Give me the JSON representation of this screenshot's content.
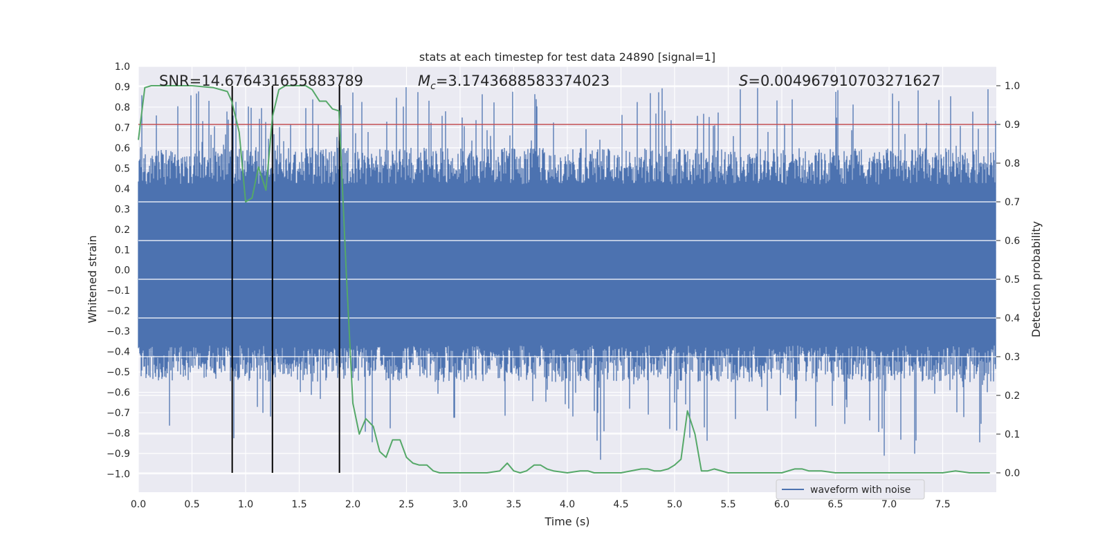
{
  "chart_data": {
    "type": "line",
    "title": "stats at each timestep for test data 24890 [signal=1]",
    "xlabel": "Time (s)",
    "ylabel_left": "Whitened strain",
    "ylabel_right": "Detection probability",
    "xlim": [
      0.0,
      8.0
    ],
    "ylim_left": [
      -1.09,
      1.0
    ],
    "ylim_right": [
      -0.05,
      1.05
    ],
    "x_ticks": [
      "0.0",
      "0.5",
      "1.0",
      "1.5",
      "2.0",
      "2.5",
      "3.0",
      "3.5",
      "4.0",
      "4.5",
      "5.0",
      "5.5",
      "6.0",
      "6.5",
      "7.0",
      "7.5"
    ],
    "y_ticks_left": [
      "1.0",
      "0.9",
      "0.8",
      "0.7",
      "0.6",
      "0.5",
      "0.4",
      "0.3",
      "0.2",
      "0.1",
      "0.0",
      "−0.1",
      "−0.2",
      "−0.3",
      "−0.4",
      "−0.5",
      "−0.6",
      "−0.7",
      "−0.8",
      "−0.9",
      "−1.0"
    ],
    "y_ticks_right": [
      "1.0",
      "0.9",
      "0.8",
      "0.7",
      "0.6",
      "0.5",
      "0.4",
      "0.3",
      "0.2",
      "0.1",
      "0.0"
    ],
    "annotations": {
      "snr": "SNR=14.676431655883789",
      "mc_symbol": "M",
      "mc_sub": "c",
      "mc_value": "=3.1743688583374023",
      "s_symbol": "S",
      "s_value": "=0.004967910703271627"
    },
    "threshold": {
      "value": 0.9,
      "axis": "right",
      "color": "#c44e52"
    },
    "vlines": [
      0.875,
      1.25,
      1.875
    ],
    "waveform": {
      "name": "waveform with noise",
      "color": "#4c72b0",
      "typical_band": [
        -0.45,
        0.5
      ],
      "spike_range": [
        -1.0,
        0.9
      ]
    },
    "series": [
      {
        "name": "",
        "axis": "right",
        "color": "#55a868",
        "x": [
          0.0,
          0.06,
          0.12,
          0.25,
          0.5,
          0.7,
          0.83,
          0.87,
          0.94,
          1.0,
          1.06,
          1.12,
          1.19,
          1.25,
          1.31,
          1.37,
          1.44,
          1.5,
          1.56,
          1.62,
          1.69,
          1.75,
          1.81,
          1.87,
          1.94,
          2.0,
          2.06,
          2.12,
          2.19,
          2.25,
          2.31,
          2.37,
          2.44,
          2.5,
          2.56,
          2.62,
          2.69,
          2.75,
          2.81,
          2.87,
          3.0,
          3.25,
          3.37,
          3.44,
          3.5,
          3.56,
          3.62,
          3.69,
          3.75,
          3.81,
          3.87,
          4.0,
          4.12,
          4.19,
          4.25,
          4.37,
          4.5,
          4.69,
          4.75,
          4.81,
          4.87,
          4.94,
          5.0,
          5.06,
          5.12,
          5.19,
          5.25,
          5.31,
          5.37,
          5.5,
          5.75,
          6.0,
          6.12,
          6.19,
          6.25,
          6.37,
          6.5,
          6.75,
          7.0,
          7.5,
          7.62,
          7.75,
          7.87,
          7.94
        ],
        "values": [
          0.86,
          0.995,
          1.0,
          1.0,
          1.0,
          0.995,
          0.985,
          0.96,
          0.88,
          0.7,
          0.71,
          0.79,
          0.73,
          0.92,
          0.99,
          1.0,
          1.0,
          1.0,
          1.0,
          0.99,
          0.96,
          0.96,
          0.94,
          0.935,
          0.51,
          0.18,
          0.1,
          0.14,
          0.12,
          0.055,
          0.04,
          0.085,
          0.085,
          0.04,
          0.025,
          0.02,
          0.02,
          0.005,
          0.0,
          0.0,
          0.0,
          0.0,
          0.005,
          0.025,
          0.005,
          0.0,
          0.005,
          0.02,
          0.02,
          0.01,
          0.005,
          0.0,
          0.005,
          0.005,
          0.0,
          0.0,
          0.0,
          0.01,
          0.01,
          0.005,
          0.005,
          0.01,
          0.02,
          0.035,
          0.16,
          0.1,
          0.005,
          0.005,
          0.01,
          0.0,
          0.0,
          0.0,
          0.01,
          0.01,
          0.005,
          0.005,
          0.0,
          0.0,
          0.0,
          0.0,
          0.005,
          0.0,
          0.0,
          0.0
        ]
      }
    ],
    "legend": {
      "placement": "lower-right",
      "entries": [
        "waveform with noise"
      ]
    },
    "grid": true,
    "colors": {
      "plot_bg": "#eaeaf2",
      "grid": "#ffffff",
      "vline": "#000000",
      "text": "#262626"
    }
  }
}
